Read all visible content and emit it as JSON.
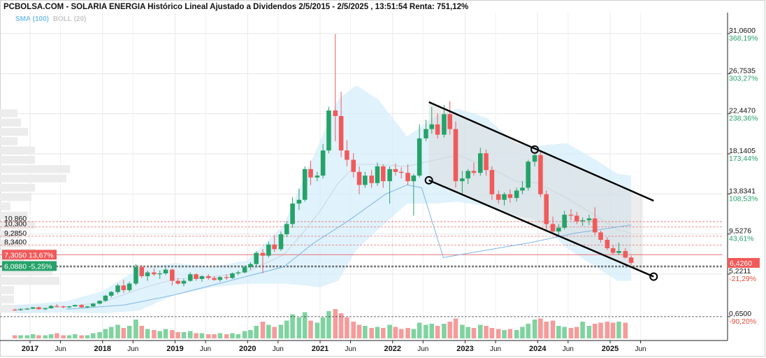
{
  "header": {
    "title": "PCBOLSA.COM - SOLARIA ENERGIA Histórico Lineal Ajustado a Dividendos 2/5/2015 - 2/5/2025 , 13:51:54 Renta: 751,12%"
  },
  "legend": {
    "sma": "SMA (100)",
    "boll": "BOLL (20)"
  },
  "colors": {
    "up": "#26a269",
    "down": "#f05a5a",
    "band": "#d6eefb",
    "channel": "#000000",
    "sma": "#7cb6e6"
  },
  "chart_data": {
    "type": "candlestick",
    "x_ticks": [
      {
        "label": "2017",
        "t": 2017.0,
        "bold": true
      },
      {
        "label": "Jun",
        "t": 2017.42,
        "bold": false
      },
      {
        "label": "2018",
        "t": 2018.0,
        "bold": true
      },
      {
        "label": "Jun",
        "t": 2018.42,
        "bold": false
      },
      {
        "label": "2019",
        "t": 2019.0,
        "bold": true
      },
      {
        "label": "Jun",
        "t": 2019.42,
        "bold": false
      },
      {
        "label": "2020",
        "t": 2020.0,
        "bold": true
      },
      {
        "label": "Jun",
        "t": 2020.42,
        "bold": false
      },
      {
        "label": "2021",
        "t": 2021.0,
        "bold": true
      },
      {
        "label": "Jun",
        "t": 2021.42,
        "bold": false
      },
      {
        "label": "2022",
        "t": 2022.0,
        "bold": true
      },
      {
        "label": "Jun",
        "t": 2022.42,
        "bold": false
      },
      {
        "label": "2023",
        "t": 2023.0,
        "bold": true
      },
      {
        "label": "Jun",
        "t": 2023.42,
        "bold": false
      },
      {
        "label": "2024",
        "t": 2024.0,
        "bold": true
      },
      {
        "label": "Jun",
        "t": 2024.42,
        "bold": false
      },
      {
        "label": "2025",
        "t": 2025.0,
        "bold": true
      },
      {
        "label": "Jun",
        "t": 2025.42,
        "bold": false
      }
    ],
    "y_axis": [
      {
        "value": 31.06,
        "label": "31,0600",
        "pct": "368,19%",
        "pct_color": "#26a269"
      },
      {
        "value": 26.7535,
        "label": "26,7535",
        "pct": "303,27%",
        "pct_color": "#26a269"
      },
      {
        "value": 22.447,
        "label": "22,4470",
        "pct": "238,36%",
        "pct_color": "#26a269"
      },
      {
        "value": 18.1405,
        "label": "18,1405",
        "pct": "173,44%",
        "pct_color": "#26a269"
      },
      {
        "value": 13.8341,
        "label": "13,8341",
        "pct": "108,53%",
        "pct_color": "#26a269"
      },
      {
        "value": 9.5276,
        "label": "9,5276",
        "pct": "43,61%",
        "pct_color": "#26a269"
      },
      {
        "value": 5.2211,
        "label": "5,2211",
        "pct": "-21,29%",
        "pct_color": "#e74c3c"
      },
      {
        "value": 0.65,
        "label": "0,6500",
        "pct": "-90,20%",
        "pct_color": "#e74c3c"
      }
    ],
    "current_price": {
      "value": 6.426,
      "label": "6,4260"
    },
    "left_levels": [
      {
        "value": 10.86,
        "label": "10,860"
      },
      {
        "value": 10.3,
        "label": "10,300"
      },
      {
        "value": 9.285,
        "label": "9,2850"
      },
      {
        "value": 8.34,
        "label": "8,3400"
      }
    ],
    "marked_levels": [
      {
        "value": 7.305,
        "label": "7,3050",
        "pct": "13,67%",
        "kind": "down"
      },
      {
        "value": 6.088,
        "label": "6,0880",
        "pct": "-5,25%",
        "kind": "up"
      }
    ],
    "candles": [
      {
        "t": 2016.79,
        "o": 1.4,
        "h": 1.5,
        "l": 1.3,
        "c": 1.35
      },
      {
        "t": 2016.87,
        "o": 1.35,
        "h": 1.55,
        "l": 1.3,
        "c": 1.45
      },
      {
        "t": 2016.96,
        "o": 1.45,
        "h": 1.6,
        "l": 1.4,
        "c": 1.5
      },
      {
        "t": 2017.04,
        "o": 1.5,
        "h": 1.7,
        "l": 1.45,
        "c": 1.65
      },
      {
        "t": 2017.12,
        "o": 1.65,
        "h": 1.75,
        "l": 1.4,
        "c": 1.45
      },
      {
        "t": 2017.21,
        "o": 1.45,
        "h": 1.6,
        "l": 1.35,
        "c": 1.55
      },
      {
        "t": 2017.29,
        "o": 1.55,
        "h": 1.9,
        "l": 1.5,
        "c": 1.8
      },
      {
        "t": 2017.37,
        "o": 1.8,
        "h": 2.0,
        "l": 1.65,
        "c": 1.75
      },
      {
        "t": 2017.46,
        "o": 1.75,
        "h": 1.85,
        "l": 1.55,
        "c": 1.65
      },
      {
        "t": 2017.54,
        "o": 1.65,
        "h": 1.8,
        "l": 1.55,
        "c": 1.75
      },
      {
        "t": 2017.62,
        "o": 1.75,
        "h": 1.95,
        "l": 1.7,
        "c": 1.9
      },
      {
        "t": 2017.71,
        "o": 1.9,
        "h": 2.0,
        "l": 1.6,
        "c": 1.65
      },
      {
        "t": 2017.79,
        "o": 1.65,
        "h": 1.8,
        "l": 1.55,
        "c": 1.75
      },
      {
        "t": 2017.87,
        "o": 1.75,
        "h": 2.1,
        "l": 1.7,
        "c": 2.05
      },
      {
        "t": 2017.96,
        "o": 2.05,
        "h": 2.4,
        "l": 1.95,
        "c": 2.35
      },
      {
        "t": 2018.04,
        "o": 2.35,
        "h": 3.0,
        "l": 2.25,
        "c": 2.9
      },
      {
        "t": 2018.12,
        "o": 2.9,
        "h": 3.4,
        "l": 2.7,
        "c": 3.3
      },
      {
        "t": 2018.21,
        "o": 3.3,
        "h": 4.2,
        "l": 3.1,
        "c": 4.0
      },
      {
        "t": 2018.29,
        "o": 4.0,
        "h": 4.6,
        "l": 3.2,
        "c": 3.5
      },
      {
        "t": 2018.37,
        "o": 3.5,
        "h": 4.4,
        "l": 3.3,
        "c": 4.2
      },
      {
        "t": 2018.46,
        "o": 4.2,
        "h": 6.3,
        "l": 4.0,
        "c": 6.0
      },
      {
        "t": 2018.54,
        "o": 6.0,
        "h": 6.2,
        "l": 4.8,
        "c": 5.0
      },
      {
        "t": 2018.62,
        "o": 5.0,
        "h": 5.6,
        "l": 4.5,
        "c": 5.4
      },
      {
        "t": 2018.71,
        "o": 5.4,
        "h": 5.8,
        "l": 5.0,
        "c": 5.2
      },
      {
        "t": 2018.79,
        "o": 5.2,
        "h": 5.6,
        "l": 4.7,
        "c": 5.3
      },
      {
        "t": 2018.87,
        "o": 5.3,
        "h": 5.9,
        "l": 5.1,
        "c": 5.7
      },
      {
        "t": 2018.96,
        "o": 5.7,
        "h": 5.8,
        "l": 4.0,
        "c": 4.5
      },
      {
        "t": 2019.04,
        "o": 4.5,
        "h": 4.8,
        "l": 4.1,
        "c": 4.2
      },
      {
        "t": 2019.12,
        "o": 4.2,
        "h": 4.7,
        "l": 3.9,
        "c": 4.5
      },
      {
        "t": 2019.21,
        "o": 4.5,
        "h": 5.4,
        "l": 4.4,
        "c": 5.2
      },
      {
        "t": 2019.29,
        "o": 5.2,
        "h": 5.3,
        "l": 4.5,
        "c": 4.7
      },
      {
        "t": 2019.37,
        "o": 4.7,
        "h": 5.1,
        "l": 4.4,
        "c": 5.0
      },
      {
        "t": 2019.46,
        "o": 5.0,
        "h": 5.2,
        "l": 4.6,
        "c": 4.8
      },
      {
        "t": 2019.54,
        "o": 4.8,
        "h": 5.0,
        "l": 4.5,
        "c": 4.6
      },
      {
        "t": 2019.62,
        "o": 4.6,
        "h": 5.0,
        "l": 4.4,
        "c": 4.9
      },
      {
        "t": 2019.71,
        "o": 4.9,
        "h": 5.2,
        "l": 4.6,
        "c": 4.8
      },
      {
        "t": 2019.79,
        "o": 4.8,
        "h": 5.4,
        "l": 4.7,
        "c": 5.3
      },
      {
        "t": 2019.87,
        "o": 5.3,
        "h": 5.6,
        "l": 5.1,
        "c": 5.4
      },
      {
        "t": 2019.96,
        "o": 5.4,
        "h": 6.1,
        "l": 5.3,
        "c": 6.0
      },
      {
        "t": 2020.04,
        "o": 6.0,
        "h": 6.5,
        "l": 5.7,
        "c": 6.3
      },
      {
        "t": 2020.12,
        "o": 6.3,
        "h": 7.7,
        "l": 6.1,
        "c": 7.5
      },
      {
        "t": 2020.21,
        "o": 7.5,
        "h": 7.9,
        "l": 5.3,
        "c": 7.2
      },
      {
        "t": 2020.29,
        "o": 7.2,
        "h": 8.7,
        "l": 7.0,
        "c": 8.4
      },
      {
        "t": 2020.37,
        "o": 8.4,
        "h": 9.4,
        "l": 7.6,
        "c": 7.9
      },
      {
        "t": 2020.46,
        "o": 7.9,
        "h": 9.8,
        "l": 7.7,
        "c": 9.5
      },
      {
        "t": 2020.54,
        "o": 9.5,
        "h": 10.9,
        "l": 9.2,
        "c": 10.6
      },
      {
        "t": 2020.62,
        "o": 10.6,
        "h": 13.5,
        "l": 10.2,
        "c": 12.8
      },
      {
        "t": 2020.71,
        "o": 12.8,
        "h": 14.4,
        "l": 12.1,
        "c": 13.2
      },
      {
        "t": 2020.79,
        "o": 13.2,
        "h": 16.8,
        "l": 13.0,
        "c": 16.5
      },
      {
        "t": 2020.87,
        "o": 16.5,
        "h": 17.4,
        "l": 14.8,
        "c": 15.6
      },
      {
        "t": 2020.96,
        "o": 15.6,
        "h": 16.2,
        "l": 15.2,
        "c": 15.8
      },
      {
        "t": 2021.04,
        "o": 15.8,
        "h": 19.2,
        "l": 15.5,
        "c": 18.5
      },
      {
        "t": 2021.12,
        "o": 18.5,
        "h": 23.2,
        "l": 18.2,
        "c": 22.8
      },
      {
        "t": 2021.21,
        "o": 22.8,
        "h": 31.0,
        "l": 19.5,
        "c": 22.2
      },
      {
        "t": 2021.29,
        "o": 22.2,
        "h": 24.8,
        "l": 17.8,
        "c": 18.5
      },
      {
        "t": 2021.37,
        "o": 18.5,
        "h": 19.6,
        "l": 16.8,
        "c": 17.5
      },
      {
        "t": 2021.46,
        "o": 17.5,
        "h": 18.2,
        "l": 15.6,
        "c": 16.2
      },
      {
        "t": 2021.54,
        "o": 16.2,
        "h": 16.8,
        "l": 13.8,
        "c": 14.8
      },
      {
        "t": 2021.62,
        "o": 14.8,
        "h": 16.2,
        "l": 14.5,
        "c": 15.8
      },
      {
        "t": 2021.71,
        "o": 15.8,
        "h": 16.4,
        "l": 14.5,
        "c": 15.0
      },
      {
        "t": 2021.79,
        "o": 15.0,
        "h": 17.2,
        "l": 14.7,
        "c": 16.8
      },
      {
        "t": 2021.87,
        "o": 16.8,
        "h": 17.0,
        "l": 14.5,
        "c": 15.2
      },
      {
        "t": 2021.96,
        "o": 15.2,
        "h": 16.8,
        "l": 12.8,
        "c": 16.5
      },
      {
        "t": 2022.04,
        "o": 16.5,
        "h": 17.1,
        "l": 15.8,
        "c": 16.2
      },
      {
        "t": 2022.12,
        "o": 16.2,
        "h": 16.7,
        "l": 15.5,
        "c": 16.1
      },
      {
        "t": 2022.21,
        "o": 16.1,
        "h": 17.0,
        "l": 14.8,
        "c": 15.2
      },
      {
        "t": 2022.29,
        "o": 15.2,
        "h": 16.0,
        "l": 11.5,
        "c": 15.8
      },
      {
        "t": 2022.37,
        "o": 15.8,
        "h": 21.3,
        "l": 15.6,
        "c": 19.8
      },
      {
        "t": 2022.46,
        "o": 19.8,
        "h": 21.8,
        "l": 19.5,
        "c": 20.8
      },
      {
        "t": 2022.54,
        "o": 20.8,
        "h": 23.2,
        "l": 20.3,
        "c": 21.3
      },
      {
        "t": 2022.62,
        "o": 21.3,
        "h": 22.5,
        "l": 19.8,
        "c": 20.2
      },
      {
        "t": 2022.71,
        "o": 20.2,
        "h": 23.4,
        "l": 19.9,
        "c": 22.4
      },
      {
        "t": 2022.79,
        "o": 22.4,
        "h": 23.8,
        "l": 20.2,
        "c": 20.8
      },
      {
        "t": 2022.87,
        "o": 20.8,
        "h": 21.6,
        "l": 14.5,
        "c": 15.2
      },
      {
        "t": 2022.96,
        "o": 15.2,
        "h": 16.3,
        "l": 13.8,
        "c": 15.5
      },
      {
        "t": 2023.04,
        "o": 15.5,
        "h": 16.5,
        "l": 14.9,
        "c": 16.3
      },
      {
        "t": 2023.12,
        "o": 16.3,
        "h": 17.2,
        "l": 15.8,
        "c": 16.1
      },
      {
        "t": 2023.21,
        "o": 16.1,
        "h": 18.8,
        "l": 15.8,
        "c": 18.2
      },
      {
        "t": 2023.29,
        "o": 18.2,
        "h": 18.6,
        "l": 15.8,
        "c": 16.4
      },
      {
        "t": 2023.37,
        "o": 16.4,
        "h": 16.8,
        "l": 13.2,
        "c": 13.8
      },
      {
        "t": 2023.46,
        "o": 13.8,
        "h": 14.2,
        "l": 12.8,
        "c": 13.2
      },
      {
        "t": 2023.54,
        "o": 13.2,
        "h": 14.0,
        "l": 12.6,
        "c": 13.8
      },
      {
        "t": 2023.62,
        "o": 13.8,
        "h": 14.3,
        "l": 12.9,
        "c": 13.4
      },
      {
        "t": 2023.71,
        "o": 13.4,
        "h": 14.5,
        "l": 13.0,
        "c": 14.2
      },
      {
        "t": 2023.79,
        "o": 14.2,
        "h": 15.2,
        "l": 13.8,
        "c": 14.5
      },
      {
        "t": 2023.87,
        "o": 14.5,
        "h": 17.5,
        "l": 14.2,
        "c": 17.3
      },
      {
        "t": 2023.96,
        "o": 17.3,
        "h": 18.3,
        "l": 16.8,
        "c": 18.0
      },
      {
        "t": 2024.04,
        "o": 18.0,
        "h": 18.4,
        "l": 13.5,
        "c": 13.8
      },
      {
        "t": 2024.12,
        "o": 13.8,
        "h": 14.2,
        "l": 10.0,
        "c": 10.6
      },
      {
        "t": 2024.21,
        "o": 10.6,
        "h": 11.4,
        "l": 9.5,
        "c": 9.8
      },
      {
        "t": 2024.29,
        "o": 9.8,
        "h": 10.6,
        "l": 9.2,
        "c": 10.2
      },
      {
        "t": 2024.37,
        "o": 10.2,
        "h": 12.0,
        "l": 10.0,
        "c": 11.6
      },
      {
        "t": 2024.46,
        "o": 11.6,
        "h": 12.2,
        "l": 11.0,
        "c": 11.5
      },
      {
        "t": 2024.54,
        "o": 11.5,
        "h": 11.9,
        "l": 10.6,
        "c": 10.9
      },
      {
        "t": 2024.62,
        "o": 10.9,
        "h": 11.3,
        "l": 10.4,
        "c": 11.0
      },
      {
        "t": 2024.71,
        "o": 11.0,
        "h": 11.6,
        "l": 10.5,
        "c": 11.2
      },
      {
        "t": 2024.79,
        "o": 11.2,
        "h": 12.4,
        "l": 9.4,
        "c": 9.7
      },
      {
        "t": 2024.87,
        "o": 9.7,
        "h": 9.9,
        "l": 8.6,
        "c": 8.9
      },
      {
        "t": 2024.96,
        "o": 8.9,
        "h": 9.2,
        "l": 7.8,
        "c": 8.0
      },
      {
        "t": 2025.04,
        "o": 8.0,
        "h": 8.3,
        "l": 7.3,
        "c": 7.5
      },
      {
        "t": 2025.12,
        "o": 7.5,
        "h": 8.6,
        "l": 7.3,
        "c": 7.7
      },
      {
        "t": 2025.21,
        "o": 7.7,
        "h": 8.0,
        "l": 6.9,
        "c": 7.0
      },
      {
        "t": 2025.29,
        "o": 7.0,
        "h": 7.2,
        "l": 6.2,
        "c": 6.43
      }
    ],
    "bollinger": [
      {
        "t": 2016.79,
        "u": 1.9,
        "m": 1.45,
        "l": 1.0
      },
      {
        "t": 2017.5,
        "u": 2.3,
        "m": 1.7,
        "l": 1.1
      },
      {
        "t": 2018.0,
        "u": 3.4,
        "m": 2.2,
        "l": 1.0
      },
      {
        "t": 2018.5,
        "u": 5.8,
        "m": 3.6,
        "l": 1.3
      },
      {
        "t": 2019.0,
        "u": 6.4,
        "m": 4.7,
        "l": 3.0
      },
      {
        "t": 2019.5,
        "u": 6.0,
        "m": 4.9,
        "l": 3.8
      },
      {
        "t": 2020.0,
        "u": 6.7,
        "m": 5.5,
        "l": 4.2
      },
      {
        "t": 2020.5,
        "u": 10.5,
        "m": 7.3,
        "l": 4.2
      },
      {
        "t": 2020.8,
        "u": 16.0,
        "m": 10.0,
        "l": 4.0
      },
      {
        "t": 2021.0,
        "u": 19.5,
        "m": 12.0,
        "l": 3.8
      },
      {
        "t": 2021.25,
        "u": 24.0,
        "m": 15.0,
        "l": 4.5
      },
      {
        "t": 2021.5,
        "u": 25.5,
        "m": 17.0,
        "l": 7.8
      },
      {
        "t": 2021.8,
        "u": 24.0,
        "m": 17.0,
        "l": 10.0
      },
      {
        "t": 2022.2,
        "u": 20.0,
        "m": 16.8,
        "l": 12.8
      },
      {
        "t": 2022.6,
        "u": 22.2,
        "m": 17.5,
        "l": 12.8
      },
      {
        "t": 2022.9,
        "u": 23.0,
        "m": 18.0,
        "l": 13.0
      },
      {
        "t": 2023.3,
        "u": 22.0,
        "m": 16.8,
        "l": 12.5
      },
      {
        "t": 2023.7,
        "u": 19.2,
        "m": 15.2,
        "l": 11.5
      },
      {
        "t": 2024.0,
        "u": 19.0,
        "m": 15.0,
        "l": 11.0
      },
      {
        "t": 2024.4,
        "u": 19.3,
        "m": 13.4,
        "l": 8.0
      },
      {
        "t": 2024.8,
        "u": 17.5,
        "m": 11.5,
        "l": 6.0
      },
      {
        "t": 2025.1,
        "u": 16.0,
        "m": 10.0,
        "l": 4.5
      },
      {
        "t": 2025.29,
        "u": 15.8,
        "m": 9.6,
        "l": 4.5
      }
    ],
    "sma": [
      {
        "t": 2017.5,
        "v": 1.45
      },
      {
        "t": 2018.3,
        "v": 1.9
      },
      {
        "t": 2019.0,
        "v": 3.0
      },
      {
        "t": 2019.5,
        "v": 4.0
      },
      {
        "t": 2020.0,
        "v": 5.0
      },
      {
        "t": 2020.5,
        "v": 6.0
      },
      {
        "t": 2020.9,
        "v": 8.5
      },
      {
        "t": 2021.4,
        "v": 11.0
      },
      {
        "t": 2021.9,
        "v": 13.8
      },
      {
        "t": 2022.2,
        "v": 14.8
      },
      {
        "t": 2022.4,
        "v": 14.5
      },
      {
        "t": 2022.7,
        "v": 7.0
      },
      {
        "t": 2023.3,
        "v": 7.8
      },
      {
        "t": 2023.9,
        "v": 8.6
      },
      {
        "t": 2024.5,
        "v": 9.6
      },
      {
        "t": 2025.29,
        "v": 10.5
      }
    ],
    "channel_lines": [
      {
        "t1": 2022.5,
        "v1": 23.7,
        "t2": 2025.6,
        "v2": 13.1
      },
      {
        "t1": 2022.5,
        "v1": 15.3,
        "t2": 2025.6,
        "v2": 4.95
      }
    ],
    "channel_markers": [
      {
        "t": 2022.5,
        "v": 15.3
      },
      {
        "t": 2023.96,
        "v": 18.6
      },
      {
        "t": 2025.6,
        "v": 4.95
      }
    ],
    "volume": [
      3,
      3,
      3,
      4,
      3,
      3,
      4,
      5,
      3,
      3,
      4,
      3,
      3,
      5,
      6,
      9,
      11,
      13,
      10,
      12,
      18,
      12,
      9,
      8,
      7,
      9,
      8,
      6,
      6,
      7,
      5,
      5,
      4,
      4,
      5,
      4,
      5,
      4,
      7,
      8,
      12,
      16,
      13,
      11,
      13,
      17,
      23,
      20,
      25,
      17,
      15,
      20,
      26,
      28,
      24,
      20,
      16,
      13,
      12,
      10,
      11,
      10,
      13,
      11,
      9,
      10,
      9,
      15,
      13,
      14,
      12,
      14,
      16,
      19,
      13,
      11,
      10,
      13,
      12,
      10,
      9,
      8,
      9,
      8,
      11,
      14,
      18,
      19,
      16,
      17,
      12,
      11,
      10,
      11,
      16,
      12,
      14,
      15,
      16,
      15,
      16,
      15
    ]
  }
}
